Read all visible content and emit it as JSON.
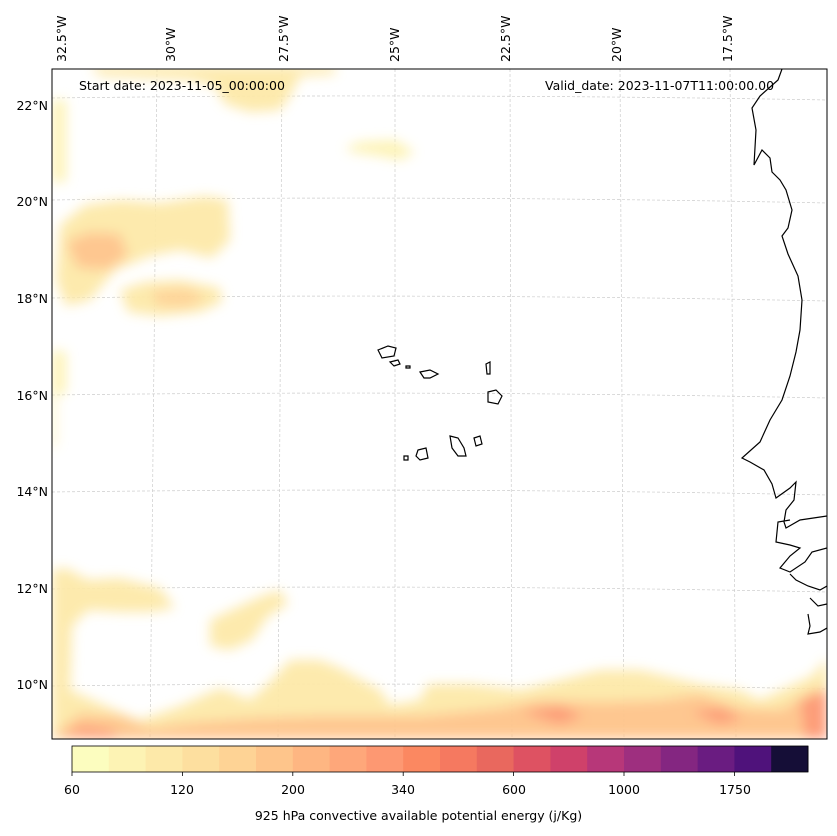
{
  "map": {
    "start_label": "Start date: 2023-11-05_00:00:00",
    "valid_label": "Valid_date: 2023-11-07T11:00:00.00",
    "lon_labels": [
      "32.5°W",
      "30°W",
      "27.5°W",
      "25°W",
      "22.5°W",
      "20°W",
      "17.5°W"
    ],
    "lat_labels": [
      "22°N",
      "20°N",
      "18°N",
      "16°N",
      "14°N",
      "12°N",
      "10°N"
    ],
    "gridlines": true
  },
  "colorbar": {
    "title": "925 hPa convective available potential energy (j/Kg)",
    "tick_labels": [
      "60",
      "120",
      "200",
      "340",
      "600",
      "1000",
      "1750"
    ],
    "colors": [
      "#fcfdbf",
      "#fdf3b4",
      "#fde9a9",
      "#fddf9f",
      "#fed395",
      "#fec58b",
      "#feb682",
      "#fea77a",
      "#fd9872",
      "#fb8861",
      "#f57960",
      "#e9685e",
      "#de5262",
      "#cf416a",
      "#b73779",
      "#9e2f7f",
      "#842681",
      "#6a1c81",
      "#4f127b",
      "#150e37"
    ]
  }
}
